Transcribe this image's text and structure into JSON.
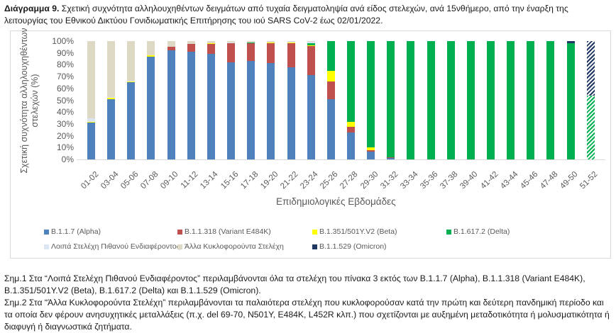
{
  "caption": {
    "label": "Διάγραμμα 9.",
    "text": " Σχετική συχνότητα αλληλουχηθέντων δειγμάτων από τυχαία δειγματοληψία ανά είδος στελεχών, ανά 15νθήμερο, από την έναρξη της λειτουργίας του Εθνικού Δικτύου Γονιδιωματικής Επιτήρησης του ιού SARS CoV-2 έως 02/01/2022."
  },
  "chart_data": {
    "type": "bar",
    "stacked": true,
    "normalized": true,
    "title": "",
    "xlabel": "Επιδημιολογικές Εβδομάδες",
    "ylabel": "Σχετική συχνότητα αλληλουχηθέντων στελεχών (%)",
    "ylim": [
      0,
      100
    ],
    "yticks": [
      "0%",
      "10%",
      "20%",
      "30%",
      "40%",
      "50%",
      "60%",
      "70%",
      "80%",
      "90%",
      "100%"
    ],
    "grid": false,
    "legend_position": "bottom",
    "categories": [
      "01-02",
      "03-04",
      "05-06",
      "07-08",
      "09-10",
      "11-12",
      "13-14",
      "15-16",
      "17-18",
      "19-20",
      "21-22",
      "23-24",
      "25-26",
      "27-28",
      "29-30",
      "31-32",
      "33-34",
      "35-36",
      "37-38",
      "39-40",
      "41-42",
      "43-44",
      "45-46",
      "47-48",
      "49-50",
      "51-52"
    ],
    "series": [
      {
        "name": "B.1.1.7 (Alpha)",
        "color": "#4f81bd",
        "values": [
          31,
          51,
          65,
          87,
          92,
          91,
          89,
          82,
          83,
          81.5,
          78,
          71,
          51,
          23,
          6.5,
          1.5,
          0,
          0,
          0,
          0,
          0,
          0,
          0,
          0,
          0,
          0
        ]
      },
      {
        "name": "B.1.1.318 (Variant E484K)",
        "color": "#c0504d",
        "values": [
          0,
          0,
          0,
          0,
          3.5,
          6.5,
          8.5,
          16,
          15,
          17,
          20.5,
          25,
          15,
          4.5,
          1.5,
          0.5,
          0,
          0,
          0,
          0,
          0,
          0,
          0,
          0,
          0,
          0
        ]
      },
      {
        "name": "B.1.351/501Y.V2 (Beta)",
        "color": "#ffff00",
        "values": [
          0.5,
          1,
          1,
          1,
          0,
          0,
          0.5,
          0.5,
          0.5,
          0.5,
          0.5,
          0.5,
          9,
          4.5,
          2,
          0,
          0,
          0,
          0,
          0,
          0,
          0,
          0,
          0,
          0,
          0
        ]
      },
      {
        "name": "B.1.617.2 (Delta)",
        "color": "#00b050",
        "values": [
          0,
          0,
          0,
          0,
          0,
          0,
          0,
          0,
          0.5,
          0,
          0,
          2,
          25,
          68,
          90,
          98,
          100,
          100,
          100,
          100,
          100,
          100,
          100,
          100,
          98,
          54
        ]
      },
      {
        "name": "Λοιπά Στελέχη Πιθανού Ενδιαφέροντος",
        "color": "#dce6f2",
        "values": [
          3.5,
          1,
          0.5,
          0,
          0,
          0,
          0,
          0.5,
          0,
          0,
          0.5,
          1,
          0,
          0,
          0,
          0,
          0,
          0,
          0,
          0,
          0,
          0,
          0,
          0,
          0,
          0
        ]
      },
      {
        "name": "Άλλα Κυκλοφορούντα Στελέχη",
        "color": "#ddd9c4",
        "values": [
          65,
          47,
          33.5,
          12,
          4.5,
          2.5,
          2,
          1,
          1,
          1,
          0.5,
          0.5,
          0,
          0,
          0,
          0,
          0,
          0,
          0,
          0,
          0,
          0,
          0,
          0,
          0,
          0
        ]
      },
      {
        "name": "B.1.1.529 (Omicron)",
        "color": "#1f3864",
        "values": [
          0,
          0,
          0,
          0,
          0,
          0,
          0,
          0,
          0,
          0,
          0,
          0,
          0,
          0,
          0,
          0,
          0,
          0,
          0,
          0,
          0,
          0,
          0,
          0,
          2,
          46
        ]
      }
    ],
    "annotations": [
      "Last bar (51-52) shown hatched (provisional data)"
    ]
  },
  "legend": [
    {
      "label": "B.1.1.7 (Alpha)",
      "color": "#4f81bd"
    },
    {
      "label": "B.1.1.318 (Variant E484K)",
      "color": "#c0504d"
    },
    {
      "label": "B.1.351/501Y.V2 (Beta)",
      "color": "#ffff00"
    },
    {
      "label": "B.1.617.2 (Delta)",
      "color": "#00b050"
    },
    {
      "label": "Λοιπά Στελέχη Πιθανού Ενδιαφέροντος",
      "color": "#dce6f2"
    },
    {
      "label": "Άλλα Κυκλοφορούντα Στελέχη",
      "color": "#ddd9c4"
    },
    {
      "label": "B.1.1.529 (Omicron)",
      "color": "#1f3864"
    }
  ],
  "notes": {
    "note1": "Σημ.1 Στα “Λοιπά Στελέχη Πιθανού Ενδιαφέροντος” περιλαμβάνονται όλα τα στελέχη του πίνακα 3 εκτός των B.1.1.7 (Alpha), B.1.1.318 (Variant E484K), B.1.351/501Y.V2 (Beta), B.1.617.2 (Delta) και B.1.1.529 (Omicron).",
    "note2": "Σημ.2 Στα “Άλλα Κυκλοφορούντα Στελέχη” περιλαμβάνονται τα παλαιότερα στελέχη που κυκλοφορούσαν κατά την πρώτη και δεύτερη πανδημική περίοδο και τα οποία δεν φέρουν ανησυχητικές μεταλλάξεις (π.χ. del 69-70, N501Y, E484K, L452R κλπ.) που σχετίζονται με αυξημένη μεταδοτικότητα ή μολυσματικότητα ή διαφυγή ή διαγνωστικά ζητήματα."
  }
}
